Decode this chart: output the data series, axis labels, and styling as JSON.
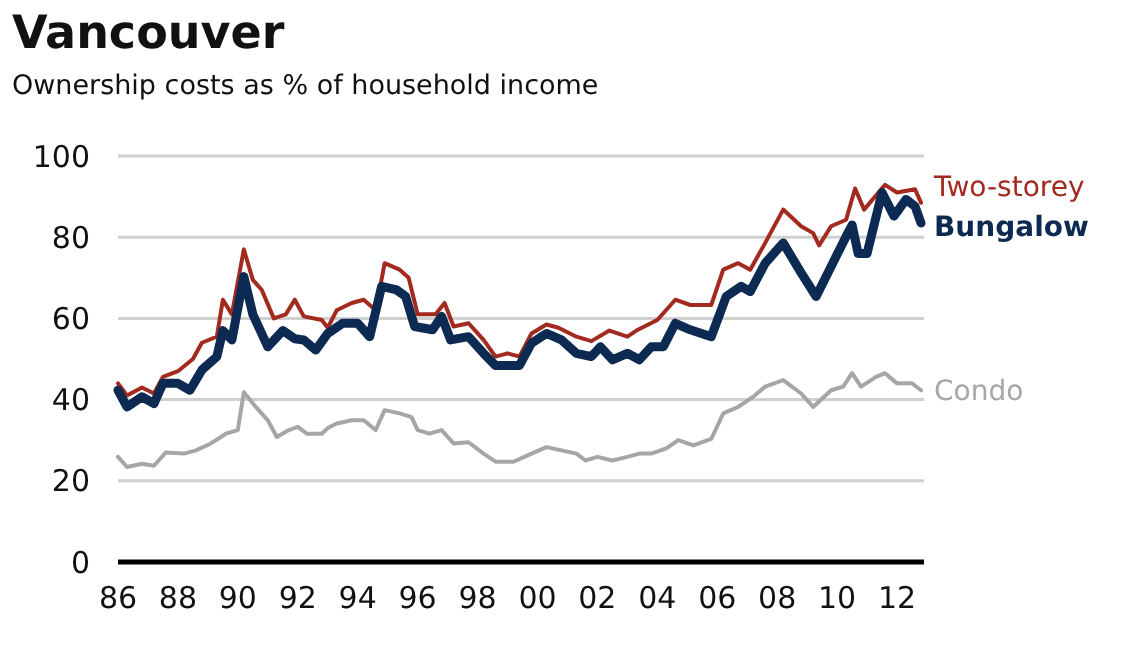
{
  "chart_data": {
    "type": "line",
    "title": "Vancouver",
    "subtitle": "Ownership costs as % of household income",
    "xlim": [
      1986,
      2012.9
    ],
    "xticks": [
      {
        "value": 1986,
        "label": "86"
      },
      {
        "value": 1988,
        "label": "88"
      },
      {
        "value": 1990,
        "label": "90"
      },
      {
        "value": 1992,
        "label": "92"
      },
      {
        "value": 1994,
        "label": "94"
      },
      {
        "value": 1996,
        "label": "96"
      },
      {
        "value": 1998,
        "label": "98"
      },
      {
        "value": 2000,
        "label": "00"
      },
      {
        "value": 2002,
        "label": "02"
      },
      {
        "value": 2004,
        "label": "04"
      },
      {
        "value": 2006,
        "label": "06"
      },
      {
        "value": 2008,
        "label": "08"
      },
      {
        "value": 2010,
        "label": "10"
      },
      {
        "value": 2012,
        "label": "12"
      }
    ],
    "ylim": [
      0,
      100
    ],
    "yticks": [
      0,
      20,
      40,
      60,
      80,
      100
    ],
    "grid": "y",
    "series": [
      {
        "name": "Two-storey",
        "color": "#a32a1f",
        "x": [
          1986.0,
          1986.3,
          1986.8,
          1987.2,
          1987.5,
          1988.0,
          1988.5,
          1988.8,
          1989.3,
          1989.5,
          1989.8,
          1990.2,
          1990.5,
          1990.8,
          1991.2,
          1991.6,
          1991.9,
          1992.2,
          1992.8,
          1993.0,
          1993.3,
          1993.8,
          1994.2,
          1994.6,
          1994.9,
          1995.4,
          1995.7,
          1996.0,
          1996.6,
          1996.9,
          1997.2,
          1997.7,
          1998.2,
          1998.6,
          1999.0,
          1999.4,
          1999.8,
          2000.3,
          2000.7,
          2001.3,
          2001.8,
          2002.4,
          2003.0,
          2003.3,
          2004.0,
          2004.6,
          2005.1,
          2005.8,
          2006.2,
          2006.7,
          2007.1,
          2007.6,
          2008.2,
          2008.8,
          2009.2,
          2009.4,
          2009.8,
          2010.3,
          2010.6,
          2010.9,
          2011.6,
          2012.0,
          2012.6,
          2012.8
        ],
        "values": [
          44,
          41,
          43,
          41.5,
          45.6,
          47,
          50,
          54,
          55.5,
          64.6,
          61,
          77,
          69.5,
          67,
          60,
          61,
          64.6,
          60.5,
          59.6,
          57.7,
          62,
          63.8,
          64.6,
          62,
          73.6,
          72,
          70,
          61,
          61,
          63.8,
          58,
          58.8,
          54.7,
          50.6,
          51.4,
          50.6,
          56.3,
          58.5,
          57.7,
          55.5,
          54.4,
          57,
          55.5,
          57,
          59.6,
          64.6,
          63.3,
          63.3,
          72,
          73.6,
          72,
          78.6,
          86.8,
          82.7,
          81,
          78,
          82.7,
          84.3,
          92,
          86.8,
          92.9,
          91,
          91.8,
          88.5
        ]
      },
      {
        "name": "Bungalow",
        "color": "#0d2a52",
        "x": [
          1986.0,
          1986.3,
          1986.8,
          1987.2,
          1987.5,
          1988.0,
          1988.4,
          1988.8,
          1989.3,
          1989.5,
          1989.8,
          1990.2,
          1990.5,
          1991.0,
          1991.5,
          1991.9,
          1992.2,
          1992.6,
          1993.0,
          1993.5,
          1994.0,
          1994.4,
          1994.8,
          1995.3,
          1995.6,
          1995.9,
          1996.5,
          1996.8,
          1997.1,
          1997.7,
          1998.2,
          1998.6,
          1999.4,
          1999.8,
          2000.3,
          2000.8,
          2001.3,
          2001.8,
          2002.1,
          2002.5,
          2003.0,
          2003.4,
          2003.8,
          2004.2,
          2004.6,
          2005.1,
          2005.8,
          2006.3,
          2006.8,
          2007.1,
          2007.6,
          2008.2,
          2008.8,
          2009.3,
          2009.8,
          2010.3,
          2010.5,
          2010.7,
          2011.0,
          2011.5,
          2011.9,
          2012.3,
          2012.6,
          2012.8
        ],
        "values": [
          42.3,
          38.2,
          40.7,
          39,
          44,
          44,
          42.3,
          47.3,
          50.6,
          57,
          54.7,
          70.3,
          61,
          53,
          57,
          55,
          54.7,
          52.2,
          56.3,
          58.8,
          58.8,
          55.5,
          67.9,
          67,
          65.4,
          58,
          57.2,
          60.5,
          54.7,
          55.5,
          51.4,
          48.4,
          48.4,
          53.9,
          56.3,
          54.7,
          51.4,
          50.6,
          53,
          49.8,
          51.4,
          49.8,
          53,
          53,
          58.8,
          57.2,
          55.5,
          65.4,
          67.9,
          66.6,
          73.6,
          78.6,
          71.2,
          65.4,
          72.8,
          80.2,
          83,
          76,
          76,
          91,
          85.2,
          89.3,
          87.6,
          83.5
        ]
      },
      {
        "name": "Condo",
        "color": "#a6a6a6",
        "x": [
          1986.0,
          1986.3,
          1986.8,
          1987.2,
          1987.6,
          1988.2,
          1988.6,
          1989.1,
          1989.6,
          1990.0,
          1990.2,
          1990.6,
          1991.0,
          1991.3,
          1991.7,
          1992.0,
          1992.3,
          1992.8,
          1993.0,
          1993.3,
          1993.8,
          1994.2,
          1994.6,
          1994.9,
          1995.4,
          1995.8,
          1996.0,
          1996.4,
          1996.8,
          1997.2,
          1997.7,
          1998.2,
          1998.6,
          1999.2,
          1999.8,
          2000.3,
          2000.8,
          2001.3,
          2001.6,
          2002.0,
          2002.5,
          2003.0,
          2003.4,
          2003.8,
          2004.3,
          2004.7,
          2005.2,
          2005.8,
          2006.2,
          2006.7,
          2007.2,
          2007.6,
          2008.2,
          2008.8,
          2009.2,
          2009.8,
          2010.2,
          2010.5,
          2010.8,
          2011.3,
          2011.6,
          2012.0,
          2012.5,
          2012.8
        ],
        "values": [
          25.9,
          23.4,
          24.2,
          23.7,
          27,
          26.7,
          27.5,
          29.2,
          31.6,
          32.5,
          41.8,
          38.2,
          34.9,
          30.8,
          32.5,
          33.3,
          31.6,
          31.6,
          33,
          34.1,
          34.9,
          34.9,
          32.5,
          37.4,
          36.6,
          35.7,
          32.5,
          31.6,
          32.5,
          29.2,
          29.5,
          26.7,
          24.7,
          24.7,
          26.7,
          28.3,
          27.5,
          26.7,
          25,
          25.9,
          25,
          25.9,
          26.7,
          26.7,
          28,
          30,
          28.7,
          30.3,
          36.6,
          38.2,
          40.7,
          43.2,
          44.8,
          41.5,
          38.2,
          42.3,
          43.2,
          46.5,
          43.2,
          45.6,
          46.5,
          44,
          44,
          42.3
        ]
      }
    ]
  }
}
